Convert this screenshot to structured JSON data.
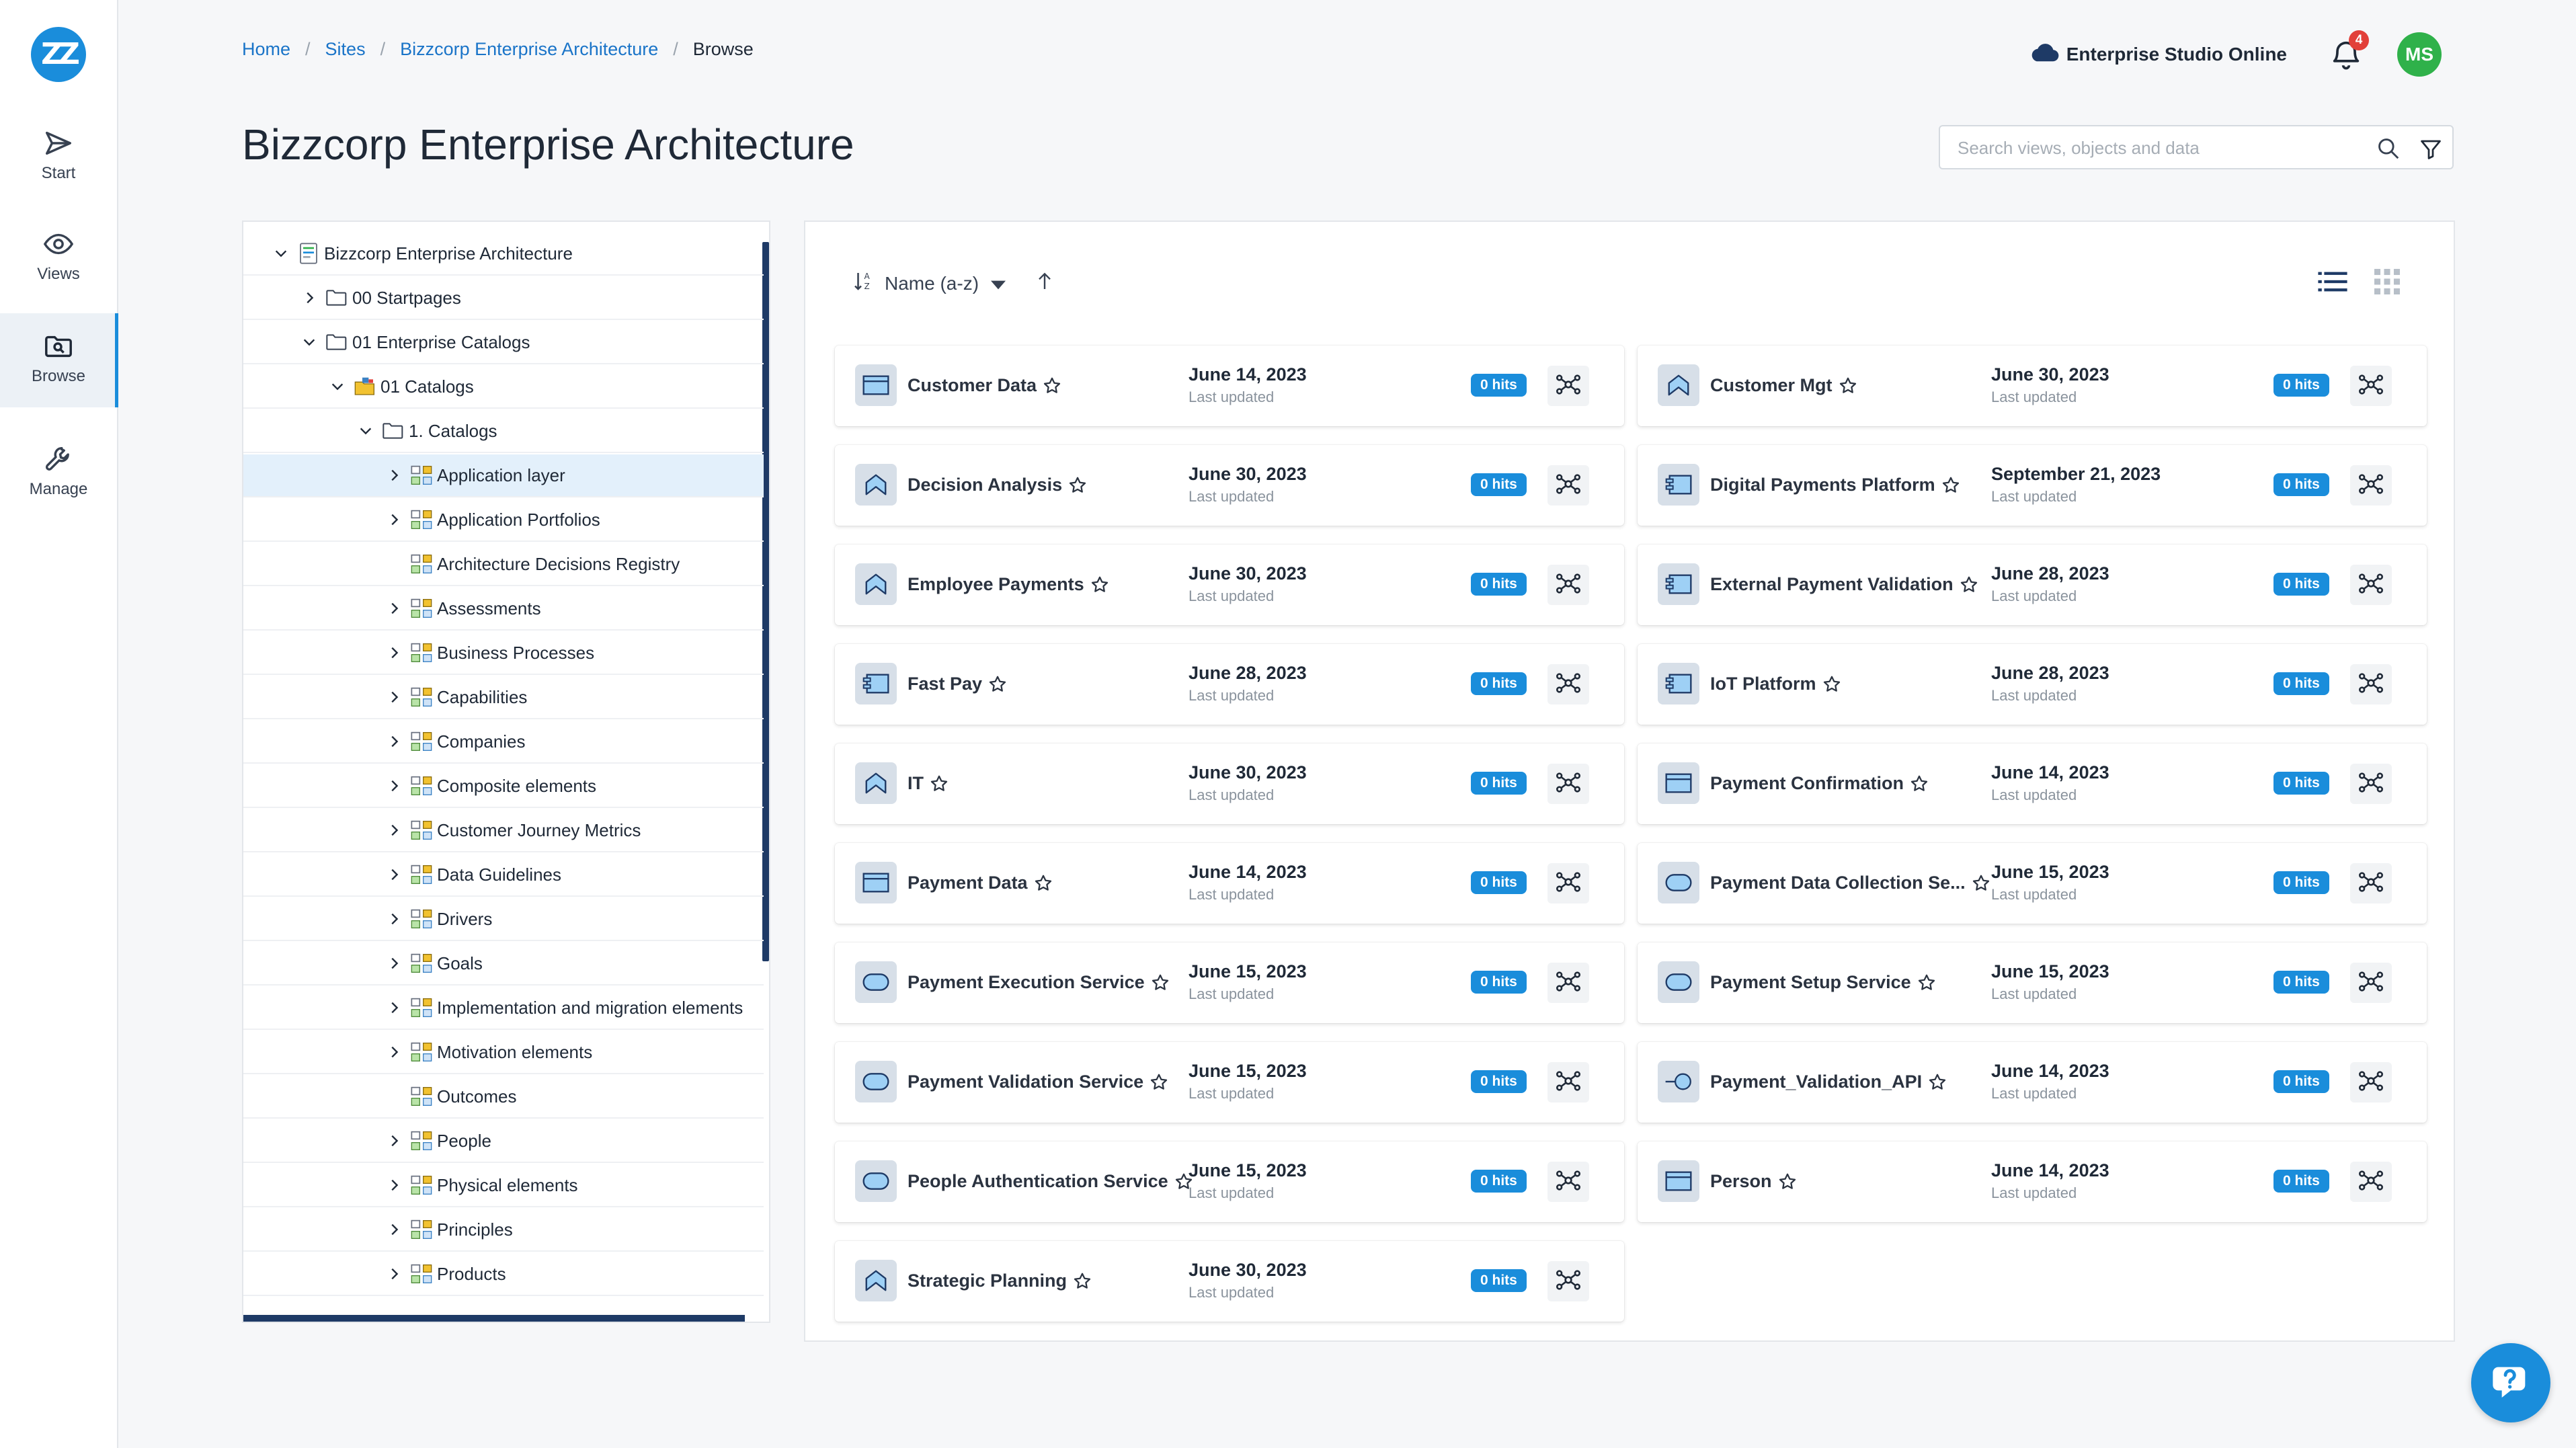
{
  "nav": {
    "logo": "ZZ",
    "items": [
      {
        "label": "Start",
        "icon": "send-icon"
      },
      {
        "label": "Views",
        "icon": "eye-icon"
      },
      {
        "label": "Browse",
        "icon": "browse-icon",
        "active": true
      },
      {
        "label": "Manage",
        "icon": "wrench-icon"
      }
    ]
  },
  "breadcrumb": [
    "Home",
    "Sites",
    "Bizzcorp Enterprise Architecture",
    "Browse"
  ],
  "header": {
    "studio": "Enterprise Studio Online",
    "notifications": "4",
    "avatar": "MS"
  },
  "page": {
    "title": "Bizzcorp Enterprise Architecture"
  },
  "search": {
    "placeholder": "Search views, objects and data"
  },
  "tree": [
    {
      "label": "Bizzcorp Enterprise Architecture",
      "level": 0,
      "state": "open",
      "icon": "repository-icon"
    },
    {
      "label": "00 Startpages",
      "level": 1,
      "state": "closed",
      "icon": "folder-icon"
    },
    {
      "label": "01 Enterprise Catalogs",
      "level": 1,
      "state": "open",
      "icon": "folder-icon"
    },
    {
      "label": "01 Catalogs",
      "level": 2,
      "state": "open",
      "icon": "catalog-folder-icon"
    },
    {
      "label": "1. Catalogs",
      "level": 3,
      "state": "open",
      "icon": "folder-icon"
    },
    {
      "label": "Application layer",
      "level": 4,
      "state": "closed",
      "icon": "elements-icon",
      "selected": true
    },
    {
      "label": "Application Portfolios",
      "level": 4,
      "state": "closed",
      "icon": "elements-icon"
    },
    {
      "label": "Architecture Decisions Registry",
      "level": 4,
      "state": "none",
      "icon": "elements-icon"
    },
    {
      "label": "Assessments",
      "level": 4,
      "state": "closed",
      "icon": "elements-icon"
    },
    {
      "label": "Business Processes",
      "level": 4,
      "state": "closed",
      "icon": "elements-icon"
    },
    {
      "label": "Capabilities",
      "level": 4,
      "state": "closed",
      "icon": "elements-icon"
    },
    {
      "label": "Companies",
      "level": 4,
      "state": "closed",
      "icon": "elements-icon"
    },
    {
      "label": "Composite elements",
      "level": 4,
      "state": "closed",
      "icon": "elements-icon"
    },
    {
      "label": "Customer Journey Metrics",
      "level": 4,
      "state": "closed",
      "icon": "elements-icon"
    },
    {
      "label": "Data Guidelines",
      "level": 4,
      "state": "closed",
      "icon": "elements-icon"
    },
    {
      "label": "Drivers",
      "level": 4,
      "state": "closed",
      "icon": "elements-icon"
    },
    {
      "label": "Goals",
      "level": 4,
      "state": "closed",
      "icon": "elements-icon"
    },
    {
      "label": "Implementation and migration elements",
      "level": 4,
      "state": "closed",
      "icon": "elements-icon"
    },
    {
      "label": "Motivation elements",
      "level": 4,
      "state": "closed",
      "icon": "elements-icon"
    },
    {
      "label": "Outcomes",
      "level": 4,
      "state": "none",
      "icon": "elements-icon"
    },
    {
      "label": "People",
      "level": 4,
      "state": "closed",
      "icon": "elements-icon"
    },
    {
      "label": "Physical elements",
      "level": 4,
      "state": "closed",
      "icon": "elements-icon"
    },
    {
      "label": "Principles",
      "level": 4,
      "state": "closed",
      "icon": "elements-icon"
    },
    {
      "label": "Products",
      "level": 4,
      "state": "closed",
      "icon": "elements-icon"
    }
  ],
  "sort": {
    "label": "Name (a-z)"
  },
  "cards": [
    {
      "name": "Customer Data",
      "date": "June 14, 2023",
      "sub": "Last updated",
      "hits": "0 hits",
      "icon": "data-object-icon"
    },
    {
      "name": "Customer Mgt",
      "date": "June 30, 2023",
      "sub": "Last updated",
      "hits": "0 hits",
      "icon": "capability-icon"
    },
    {
      "name": "Decision Analysis",
      "date": "June 30, 2023",
      "sub": "Last updated",
      "hits": "0 hits",
      "icon": "capability-icon"
    },
    {
      "name": "Digital Payments Platform",
      "date": "September 21, 2023",
      "sub": "Last updated",
      "hits": "0 hits",
      "icon": "application-component-icon"
    },
    {
      "name": "Employee Payments",
      "date": "June 30, 2023",
      "sub": "Last updated",
      "hits": "0 hits",
      "icon": "capability-icon"
    },
    {
      "name": "External Payment Validation",
      "date": "June 28, 2023",
      "sub": "Last updated",
      "hits": "0 hits",
      "icon": "application-component-icon"
    },
    {
      "name": "Fast Pay",
      "date": "June 28, 2023",
      "sub": "Last updated",
      "hits": "0 hits",
      "icon": "application-component-icon"
    },
    {
      "name": "IoT Platform",
      "date": "June 28, 2023",
      "sub": "Last updated",
      "hits": "0 hits",
      "icon": "application-component-icon"
    },
    {
      "name": "IT",
      "date": "June 30, 2023",
      "sub": "Last updated",
      "hits": "0 hits",
      "icon": "capability-icon"
    },
    {
      "name": "Payment Confirmation",
      "date": "June 14, 2023",
      "sub": "Last updated",
      "hits": "0 hits",
      "icon": "data-object-icon"
    },
    {
      "name": "Payment Data",
      "date": "June 14, 2023",
      "sub": "Last updated",
      "hits": "0 hits",
      "icon": "data-object-icon"
    },
    {
      "name": "Payment Data Collection Se...",
      "date": "June 15, 2023",
      "sub": "Last updated",
      "hits": "0 hits",
      "icon": "service-icon"
    },
    {
      "name": "Payment Execution Service",
      "date": "June 15, 2023",
      "sub": "Last updated",
      "hits": "0 hits",
      "icon": "service-icon"
    },
    {
      "name": "Payment Setup Service",
      "date": "June 15, 2023",
      "sub": "Last updated",
      "hits": "0 hits",
      "icon": "service-icon"
    },
    {
      "name": "Payment Validation Service",
      "date": "June 15, 2023",
      "sub": "Last updated",
      "hits": "0 hits",
      "icon": "service-icon"
    },
    {
      "name": "Payment_Validation_API",
      "date": "June 14, 2023",
      "sub": "Last updated",
      "hits": "0 hits",
      "icon": "interface-icon"
    },
    {
      "name": "People Authentication Service",
      "date": "June 15, 2023",
      "sub": "Last updated",
      "hits": "0 hits",
      "icon": "service-icon"
    },
    {
      "name": "Person",
      "date": "June 14, 2023",
      "sub": "Last updated",
      "hits": "0 hits",
      "icon": "data-object-icon"
    },
    {
      "name": "Strategic Planning",
      "date": "June 30, 2023",
      "sub": "Last updated",
      "hits": "0 hits",
      "icon": "capability-icon"
    }
  ],
  "colors": {
    "accent": "#1a8ddb",
    "badge": "#e2403a",
    "avatar": "#2fb14a",
    "selected": "#e3f0fb"
  }
}
